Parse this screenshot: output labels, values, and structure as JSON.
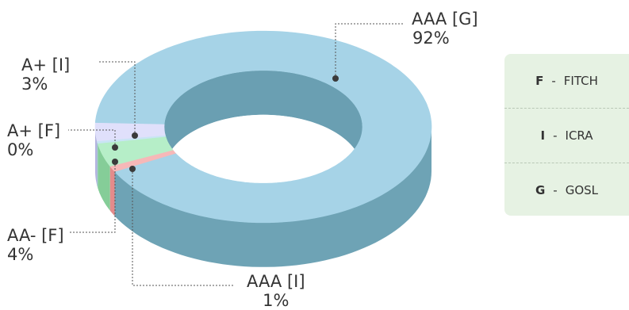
{
  "chart_data": {
    "type": "pie",
    "style": "3d-donut",
    "slices": [
      {
        "label": "AAA [G]",
        "value_label": "92%",
        "value": 92,
        "color": "#a6d3e7",
        "side": "#6ea3b5"
      },
      {
        "label": "AAA [I]",
        "value_label": "1%",
        "value": 1,
        "color": "#f6b8b8",
        "side": "#e48b8b"
      },
      {
        "label": "AA- [F]",
        "value_label": "4%",
        "value": 4,
        "color": "#b6eec8",
        "side": "#85cd98"
      },
      {
        "label": "A+ [F]",
        "value_label": "0%",
        "value": 0.4,
        "color": "#c9e4f4",
        "side": "#98b9cf"
      },
      {
        "label": "A+ [I]",
        "value_label": "3%",
        "value": 3,
        "color": "#e0e0fb",
        "side": "#b4b4e0"
      }
    ],
    "legend": [
      {
        "code": "F",
        "sep": "-",
        "name": "FITCH"
      },
      {
        "code": "I",
        "sep": "-",
        "name": "ICRA"
      },
      {
        "code": "G",
        "sep": "-",
        "name": "GOSL"
      }
    ]
  }
}
